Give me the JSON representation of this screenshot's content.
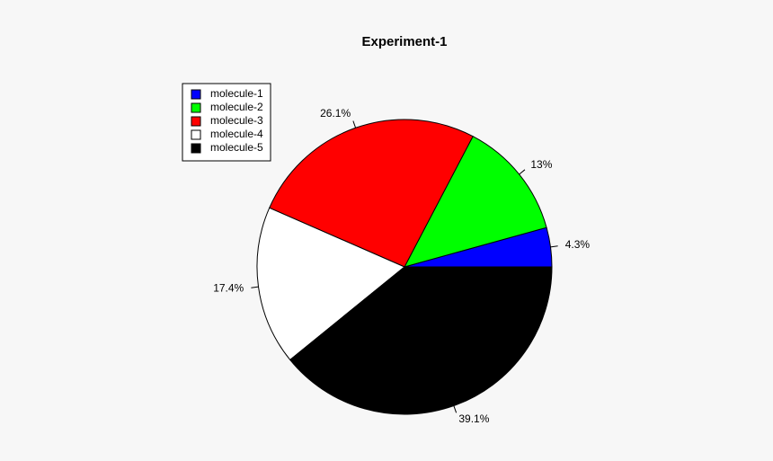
{
  "chart_data": {
    "type": "pie",
    "title": "Experiment-1",
    "categories": [
      "molecule-1",
      "molecule-2",
      "molecule-3",
      "molecule-4",
      "molecule-5"
    ],
    "values": [
      4.3,
      13,
      26.1,
      17.4,
      39.1
    ],
    "value_labels": [
      "4.3%",
      "13%",
      "26.1%",
      "17.4%",
      "39.1%"
    ],
    "colors": [
      "#0000ff",
      "#00ff00",
      "#ff0000",
      "#ffffff",
      "#000000"
    ],
    "legend": "top-left"
  }
}
